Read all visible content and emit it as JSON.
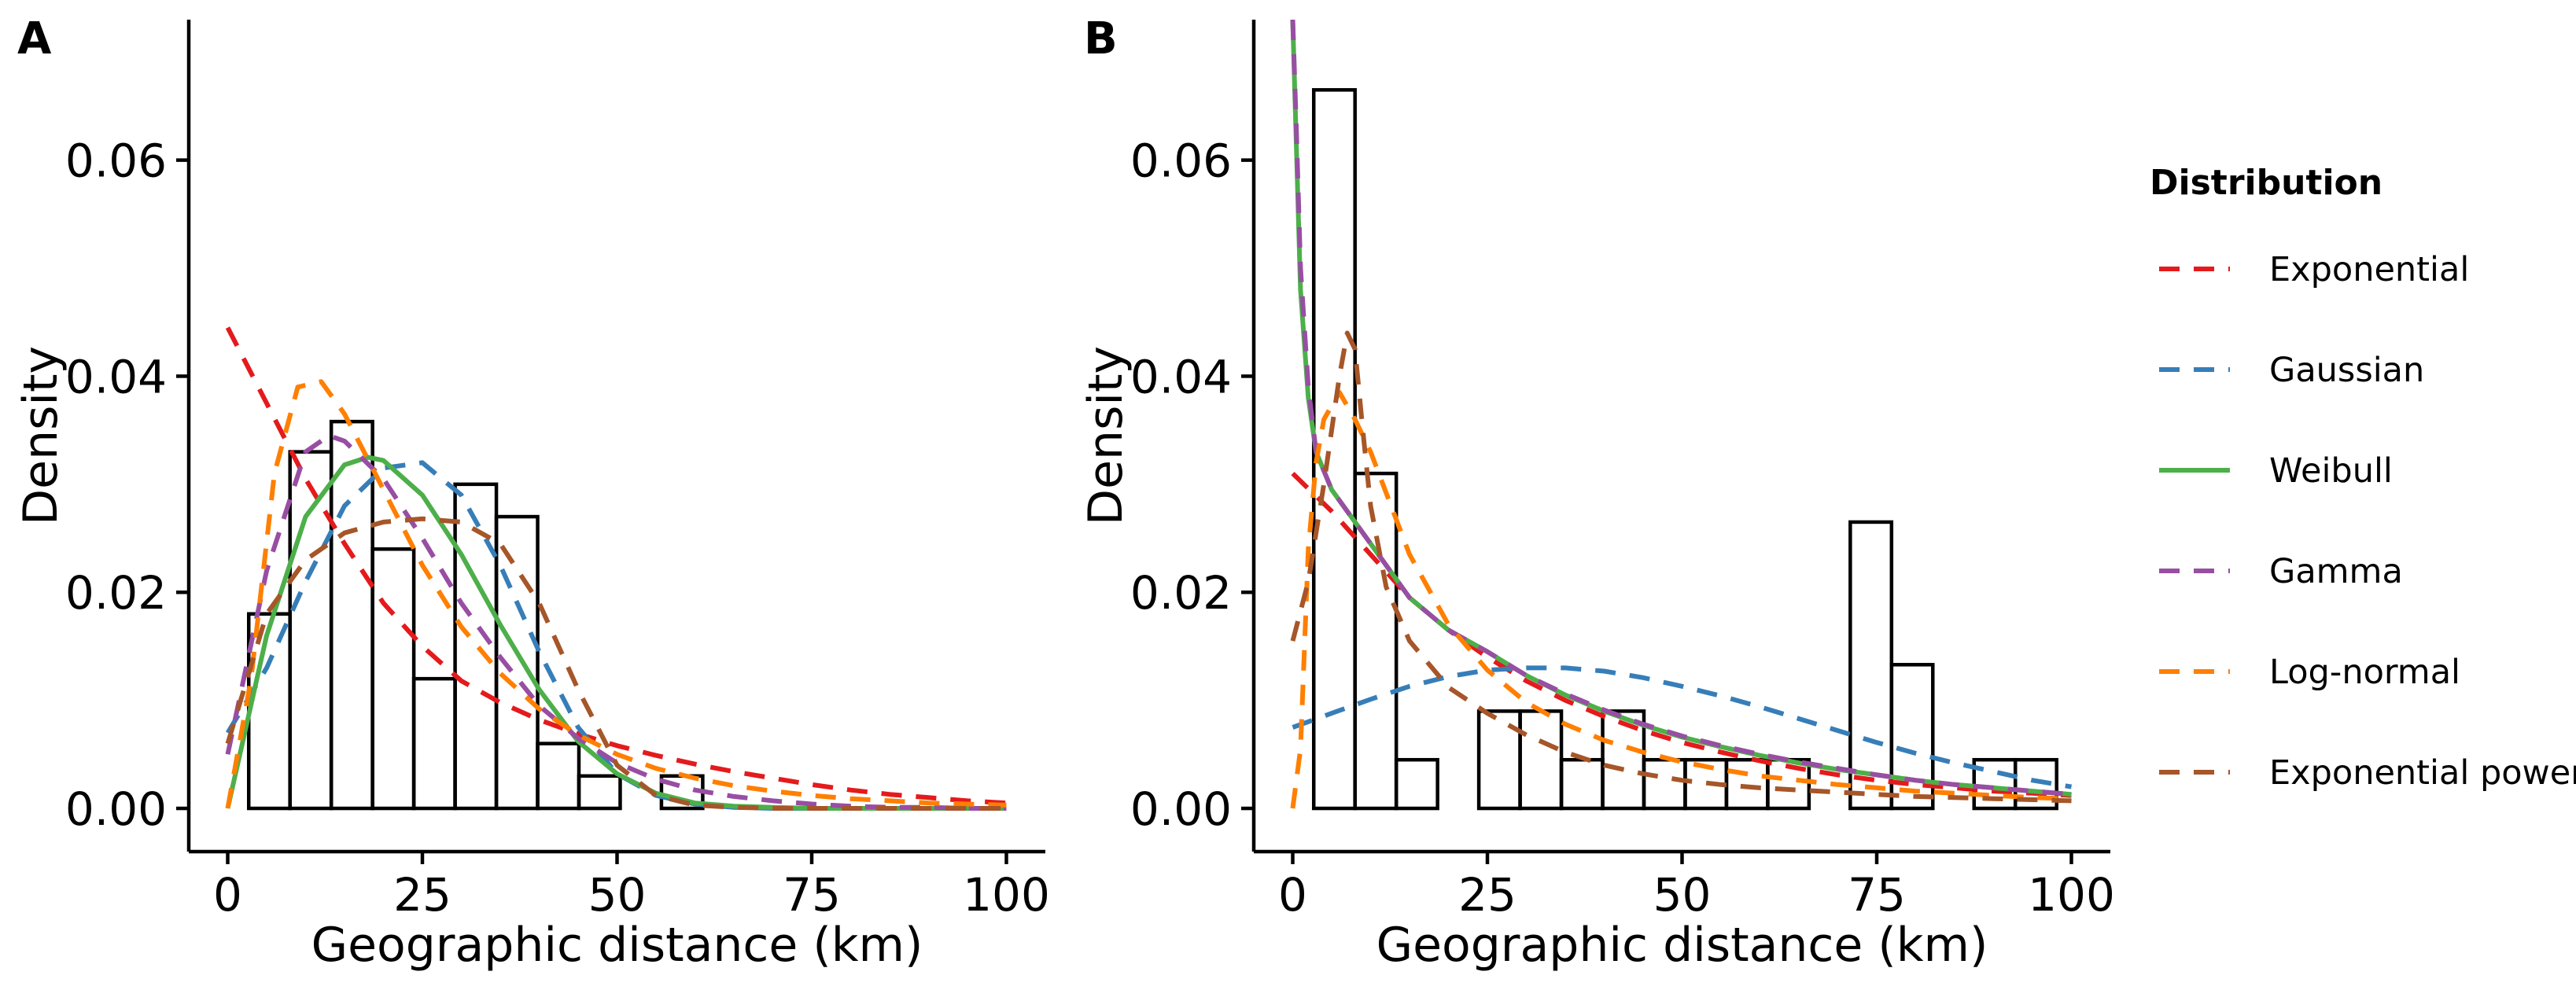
{
  "chart_data": [
    {
      "type": "bar",
      "panel_label": "A",
      "xlabel": "Geographic distance (km)",
      "ylabel": "Density",
      "xlim": [
        -5,
        105
      ],
      "ylim": [
        -0.004,
        0.073
      ],
      "x_ticks": [
        0,
        25,
        50,
        75,
        100
      ],
      "x_tick_labels": [
        "0",
        "25",
        "50",
        "75",
        "100"
      ],
      "y_ticks": [
        0,
        0.02,
        0.04,
        0.06
      ],
      "y_tick_labels": [
        "0.00",
        "0.02",
        "0.04",
        "0.06"
      ],
      "grid": false,
      "histogram": {
        "bin_edges": [
          2.7,
          8.0,
          13.3,
          18.6,
          23.9,
          29.2,
          34.5,
          39.8,
          45.1,
          50.4,
          55.7,
          61.0
        ],
        "values": [
          0.018,
          0.033,
          0.0358,
          0.024,
          0.012,
          0.03,
          0.027,
          0.006,
          0.003,
          0.0,
          0.003
        ]
      },
      "series": [
        {
          "name": "Exponential",
          "x": [
            0,
            5,
            10,
            15,
            20,
            25,
            30,
            35,
            40,
            45,
            50,
            55,
            60,
            65,
            70,
            75,
            80,
            85,
            90,
            95,
            100
          ],
          "values": [
            0.0445,
            0.0375,
            0.0305,
            0.0245,
            0.019,
            0.015,
            0.0118,
            0.0098,
            0.0082,
            0.0069,
            0.0058,
            0.0049,
            0.0041,
            0.0034,
            0.0028,
            0.0022,
            0.0017,
            0.0013,
            0.001,
            0.0007,
            0.0005
          ]
        },
        {
          "name": "Gaussian",
          "x": [
            0,
            5,
            10,
            15,
            20,
            25,
            30,
            35,
            40,
            45,
            50,
            55,
            60,
            65,
            70,
            75,
            80,
            85,
            90,
            95,
            100
          ],
          "values": [
            0.007,
            0.013,
            0.021,
            0.028,
            0.0315,
            0.032,
            0.029,
            0.0225,
            0.0145,
            0.0075,
            0.0032,
            0.0012,
            0.0004,
            0.0001,
            0.0,
            0.0,
            0.0,
            0.0,
            0.0,
            0.0,
            0.0
          ]
        },
        {
          "name": "Weibull",
          "x": [
            0,
            5,
            10,
            15,
            18,
            20,
            25,
            30,
            35,
            40,
            45,
            50,
            55,
            60,
            65,
            70,
            75,
            80,
            85,
            90,
            95,
            100
          ],
          "values": [
            0.0,
            0.016,
            0.027,
            0.0318,
            0.0325,
            0.0322,
            0.029,
            0.0235,
            0.017,
            0.011,
            0.0062,
            0.0032,
            0.0014,
            0.0005,
            0.0002,
            0.0001,
            0.0,
            0.0,
            0.0,
            0.0,
            0.0,
            0.0
          ]
        },
        {
          "name": "Gamma",
          "x": [
            0,
            5,
            10,
            13,
            15,
            20,
            25,
            30,
            35,
            40,
            45,
            50,
            55,
            60,
            65,
            70,
            75,
            80,
            85,
            90,
            95,
            100
          ],
          "values": [
            0.005,
            0.022,
            0.033,
            0.0345,
            0.034,
            0.0305,
            0.025,
            0.019,
            0.014,
            0.0095,
            0.0065,
            0.0042,
            0.0027,
            0.0017,
            0.0011,
            0.0007,
            0.0004,
            0.0002,
            0.0001,
            0.0001,
            0.0,
            0.0
          ]
        },
        {
          "name": "Log-normal",
          "x": [
            0,
            3,
            6,
            9,
            12,
            15,
            20,
            25,
            30,
            35,
            40,
            45,
            50,
            55,
            60,
            65,
            70,
            75,
            80,
            85,
            90,
            95,
            100
          ],
          "values": [
            0.0,
            0.012,
            0.031,
            0.039,
            0.0395,
            0.0365,
            0.0295,
            0.0225,
            0.0168,
            0.0125,
            0.0092,
            0.0068,
            0.005,
            0.0037,
            0.0028,
            0.0021,
            0.0016,
            0.0012,
            0.0009,
            0.0007,
            0.0005,
            0.0004,
            0.0003
          ]
        },
        {
          "name": "Exponential power",
          "x": [
            0,
            5,
            10,
            15,
            20,
            25,
            30,
            35,
            40,
            45,
            50,
            55,
            60,
            65,
            70,
            75,
            80,
            85,
            90,
            95,
            100
          ],
          "values": [
            0.006,
            0.018,
            0.023,
            0.0255,
            0.0265,
            0.0268,
            0.0265,
            0.0245,
            0.019,
            0.011,
            0.004,
            0.0012,
            0.0003,
            0.0001,
            0.0,
            0.0,
            0.0,
            0.0,
            0.0,
            0.0,
            0.0
          ]
        }
      ]
    },
    {
      "type": "bar",
      "panel_label": "B",
      "xlabel": "Geographic distance (km)",
      "ylabel": "Density",
      "xlim": [
        -5,
        105
      ],
      "ylim": [
        -0.004,
        0.073
      ],
      "x_ticks": [
        0,
        25,
        50,
        75,
        100
      ],
      "x_tick_labels": [
        "0",
        "25",
        "50",
        "75",
        "100"
      ],
      "y_ticks": [
        0,
        0.02,
        0.04,
        0.06
      ],
      "y_tick_labels": [
        "0.00",
        "0.02",
        "0.04",
        "0.06"
      ],
      "grid": false,
      "histogram": {
        "bin_edges": [
          2.7,
          8.0,
          13.3,
          18.6,
          23.9,
          29.2,
          34.5,
          39.8,
          45.1,
          50.4,
          55.7,
          61.0,
          66.3,
          71.6,
          76.9,
          82.2,
          87.5,
          92.8,
          98.1
        ],
        "values": [
          0.0665,
          0.031,
          0.0045,
          0.0,
          0.009,
          0.009,
          0.0045,
          0.009,
          0.0045,
          0.0045,
          0.0045,
          0.0045,
          0.0,
          0.0265,
          0.0133,
          0.0,
          0.0045,
          0.0045
        ]
      },
      "series": [
        {
          "name": "Exponential",
          "x": [
            0,
            5,
            10,
            15,
            20,
            25,
            30,
            35,
            40,
            45,
            50,
            55,
            60,
            65,
            70,
            75,
            80,
            85,
            90,
            95,
            100
          ],
          "values": [
            0.031,
            0.0275,
            0.0235,
            0.0195,
            0.0165,
            0.014,
            0.0118,
            0.01,
            0.0085,
            0.0072,
            0.0061,
            0.0052,
            0.0044,
            0.0037,
            0.0031,
            0.0026,
            0.0022,
            0.0019,
            0.0016,
            0.0014,
            0.0012
          ]
        },
        {
          "name": "Gaussian",
          "x": [
            0,
            5,
            10,
            15,
            20,
            25,
            30,
            35,
            40,
            45,
            50,
            55,
            60,
            65,
            70,
            75,
            80,
            85,
            90,
            95,
            100
          ],
          "values": [
            0.0075,
            0.0088,
            0.0101,
            0.0113,
            0.0122,
            0.0128,
            0.013,
            0.013,
            0.0127,
            0.0121,
            0.0113,
            0.0104,
            0.0094,
            0.0083,
            0.0072,
            0.0061,
            0.0051,
            0.0042,
            0.0034,
            0.0026,
            0.002
          ]
        },
        {
          "name": "Weibull",
          "x": [
            0,
            1,
            2,
            3,
            5,
            10,
            15,
            20,
            25,
            30,
            35,
            40,
            45,
            50,
            55,
            60,
            65,
            70,
            75,
            80,
            85,
            90,
            95,
            100
          ],
          "values": [
            0.073,
            0.048,
            0.038,
            0.033,
            0.0295,
            0.0245,
            0.0195,
            0.0165,
            0.0145,
            0.0123,
            0.0105,
            0.009,
            0.0077,
            0.0066,
            0.0057,
            0.0049,
            0.0042,
            0.0036,
            0.0031,
            0.0026,
            0.0022,
            0.0019,
            0.0016,
            0.0013
          ]
        },
        {
          "name": "Gamma",
          "x": [
            0,
            0.5,
            1,
            2,
            3,
            5,
            10,
            15,
            20,
            25,
            30,
            35,
            40,
            45,
            50,
            55,
            60,
            65,
            70,
            75,
            80,
            85,
            90,
            95,
            100
          ],
          "values": [
            0.073,
            0.062,
            0.05,
            0.039,
            0.033,
            0.0295,
            0.0245,
            0.0195,
            0.0165,
            0.0145,
            0.0123,
            0.0106,
            0.0091,
            0.0078,
            0.0067,
            0.0058,
            0.005,
            0.0043,
            0.0037,
            0.0031,
            0.0026,
            0.0022,
            0.0019,
            0.0016,
            0.0013
          ]
        },
        {
          "name": "Log-normal",
          "x": [
            0,
            1,
            2,
            3,
            4,
            6,
            8,
            10,
            15,
            20,
            25,
            30,
            35,
            40,
            45,
            50,
            55,
            60,
            65,
            70,
            75,
            80,
            85,
            90,
            95,
            100
          ],
          "values": [
            0.0,
            0.0055,
            0.024,
            0.032,
            0.036,
            0.0385,
            0.036,
            0.033,
            0.0235,
            0.017,
            0.0128,
            0.0098,
            0.0078,
            0.0063,
            0.0052,
            0.0043,
            0.0036,
            0.003,
            0.0026,
            0.0022,
            0.0019,
            0.0016,
            0.0014,
            0.0012,
            0.001,
            0.0009
          ]
        },
        {
          "name": "Exponential power",
          "x": [
            0,
            2,
            4,
            6,
            7,
            8,
            9,
            10,
            12,
            15,
            20,
            25,
            30,
            35,
            40,
            45,
            50,
            55,
            60,
            65,
            70,
            75,
            80,
            85,
            90,
            95,
            100
          ],
          "values": [
            0.0155,
            0.021,
            0.03,
            0.04,
            0.044,
            0.0425,
            0.035,
            0.028,
            0.0205,
            0.0155,
            0.0112,
            0.0088,
            0.0068,
            0.0052,
            0.004,
            0.0032,
            0.0026,
            0.0022,
            0.0019,
            0.0017,
            0.0015,
            0.0013,
            0.0011,
            0.001,
            0.0009,
            0.0008,
            0.0007
          ]
        }
      ]
    }
  ],
  "legend": {
    "title": "Distribution",
    "placement": "right",
    "items": [
      {
        "label": "Exponential",
        "color": "#E41A1C",
        "linetype": "dashed"
      },
      {
        "label": "Gaussian",
        "color": "#377EB8",
        "linetype": "dashed"
      },
      {
        "label": "Weibull",
        "color": "#4DAF4A",
        "linetype": "solid"
      },
      {
        "label": "Gamma",
        "color": "#984EA3",
        "linetype": "dashed"
      },
      {
        "label": "Log-normal",
        "color": "#FF7F00",
        "linetype": "dashed"
      },
      {
        "label": "Exponential power",
        "color": "#A65628",
        "linetype": "dashed"
      }
    ]
  }
}
